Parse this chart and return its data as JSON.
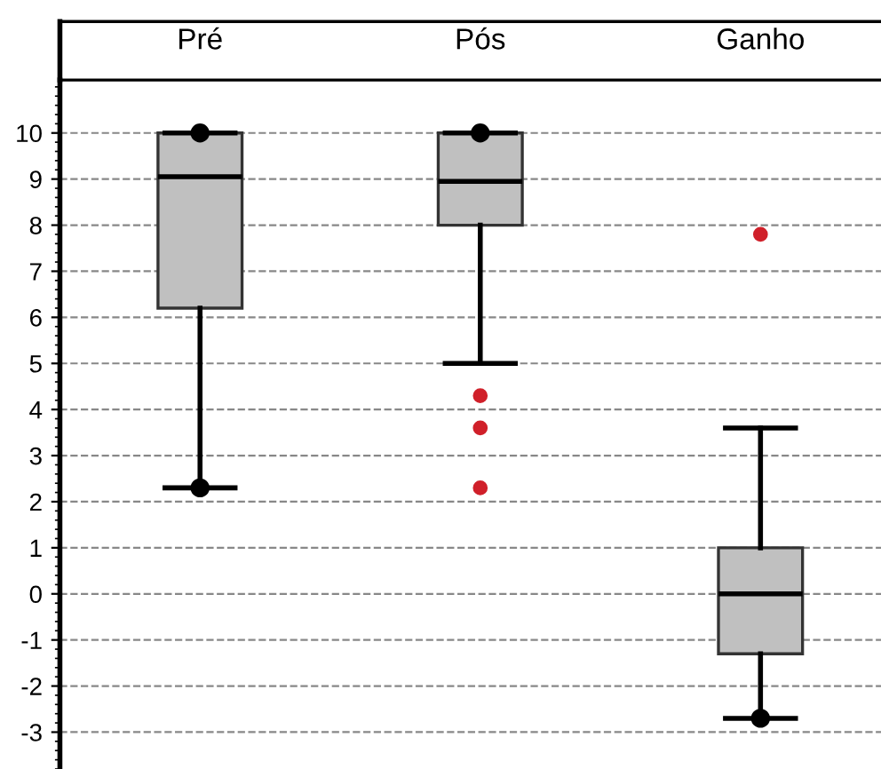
{
  "chart_data": {
    "type": "box",
    "categories": [
      "Pré",
      "Pós",
      "Ganho"
    ],
    "boxes": [
      {
        "low": 2.3,
        "q1": 6.2,
        "median": 9.05,
        "q3": 10,
        "high": 10
      },
      {
        "low": 5,
        "q1": 8,
        "median": 8.95,
        "q3": 10,
        "high": 10,
        "outliers": [
          4.3,
          3.6,
          2.3
        ]
      },
      {
        "low": -2.7,
        "q1": -1.3,
        "median": 0,
        "q3": 1,
        "high": 3.6,
        "outliers": [
          7.8
        ]
      }
    ],
    "color": "#c0c0c0",
    "series": [
      {
        "type": "scatter",
        "color": "#000000",
        "x": [
          "Pré",
          "Pré",
          "Pós",
          "Ganho"
        ],
        "values": [
          10,
          2.3,
          10,
          -2.7
        ]
      }
    ],
    "ylim": [
      -3.8,
      11.15
    ],
    "yticks": [
      -3,
      -2,
      -1,
      0,
      1,
      2,
      3,
      4,
      5,
      6,
      7,
      8,
      9,
      10
    ],
    "grid": "y",
    "line_style": "dashed"
  }
}
